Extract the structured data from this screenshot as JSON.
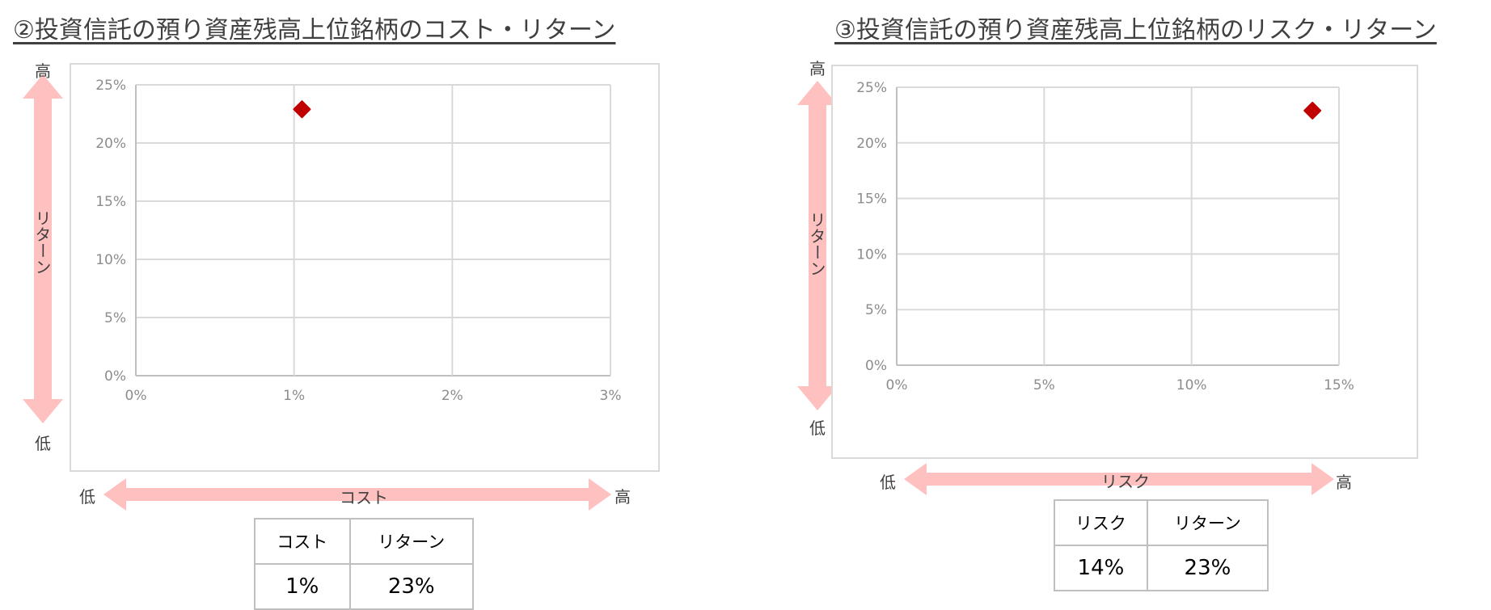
{
  "chart_data": [
    {
      "type": "scatter",
      "title": "②投資信託の預り資産残高上位銘柄のコスト・リターン",
      "xlabel": "コスト",
      "ylabel": "リターン",
      "xlim": [
        0,
        3
      ],
      "ylim": [
        0,
        25
      ],
      "x_ticks": [
        "0%",
        "1%",
        "2%",
        "3%"
      ],
      "y_ticks": [
        "0%",
        "5%",
        "10%",
        "15%",
        "20%",
        "25%"
      ],
      "grid": true,
      "points": [
        {
          "x": 1.05,
          "y": 22.9
        }
      ],
      "marker_color": "#c00000",
      "arrow_color": "#ffc0c0",
      "axis_high": "高",
      "axis_low": "低",
      "table": {
        "headers": [
          "コスト",
          "リターン"
        ],
        "values": [
          "1%",
          "23%"
        ]
      }
    },
    {
      "type": "scatter",
      "title": "③投資信託の預り資産残高上位銘柄のリスク・リターン",
      "xlabel": "リスク",
      "ylabel": "リターン",
      "xlim": [
        0,
        15
      ],
      "ylim": [
        0,
        25
      ],
      "x_ticks": [
        "0%",
        "5%",
        "10%",
        "15%"
      ],
      "y_ticks": [
        "0%",
        "5%",
        "10%",
        "15%",
        "20%",
        "25%"
      ],
      "grid": true,
      "points": [
        {
          "x": 14.1,
          "y": 22.9
        }
      ],
      "marker_color": "#c00000",
      "arrow_color": "#ffc0c0",
      "axis_high": "高",
      "axis_low": "低",
      "table": {
        "headers": [
          "リスク",
          "リターン"
        ],
        "values": [
          "14%",
          "23%"
        ]
      }
    }
  ]
}
